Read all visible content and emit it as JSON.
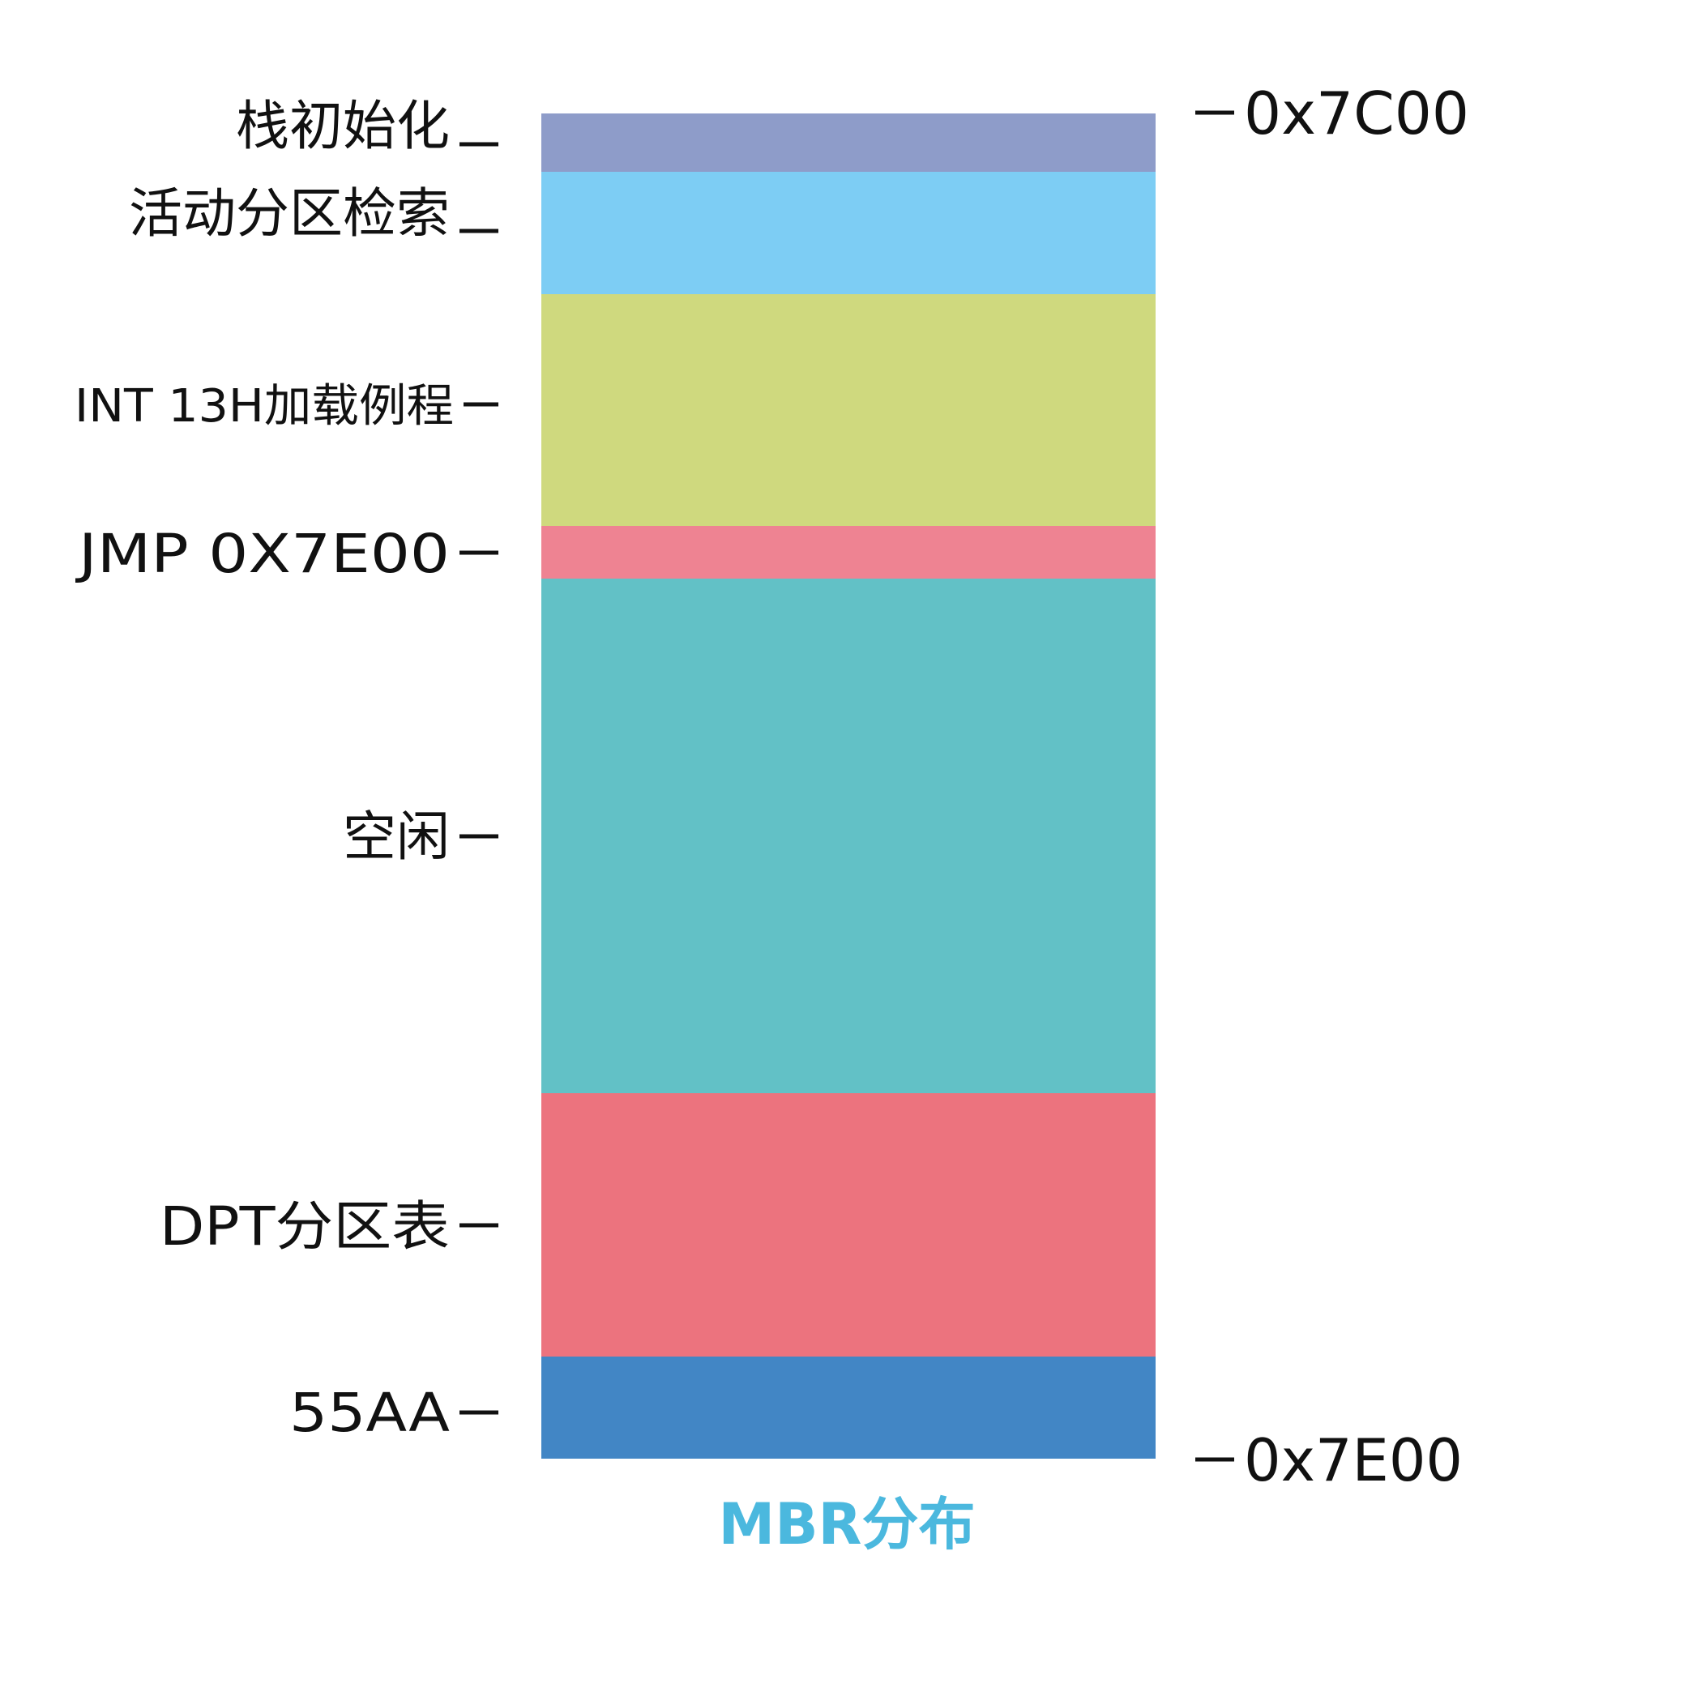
{
  "title": "MBR分布",
  "title_color": "#4bb8de",
  "segments": [
    {
      "label": "栈初始化",
      "color": "#8e9cc9"
    },
    {
      "label": "活动分区检索",
      "color": "#7dcdf4"
    },
    {
      "label": "INT 13H加载例程",
      "color": "#cfd97e"
    },
    {
      "label": "JMP 0X7E00",
      "color": "#ee8392"
    },
    {
      "label": "空闲",
      "color": "#62c1c6"
    },
    {
      "label": "DPT分区表",
      "color": "#ec737e"
    },
    {
      "label": "55AA",
      "color": "#4286c5"
    }
  ],
  "addresses": {
    "start": "0x7C00",
    "end": "0x7E00"
  }
}
